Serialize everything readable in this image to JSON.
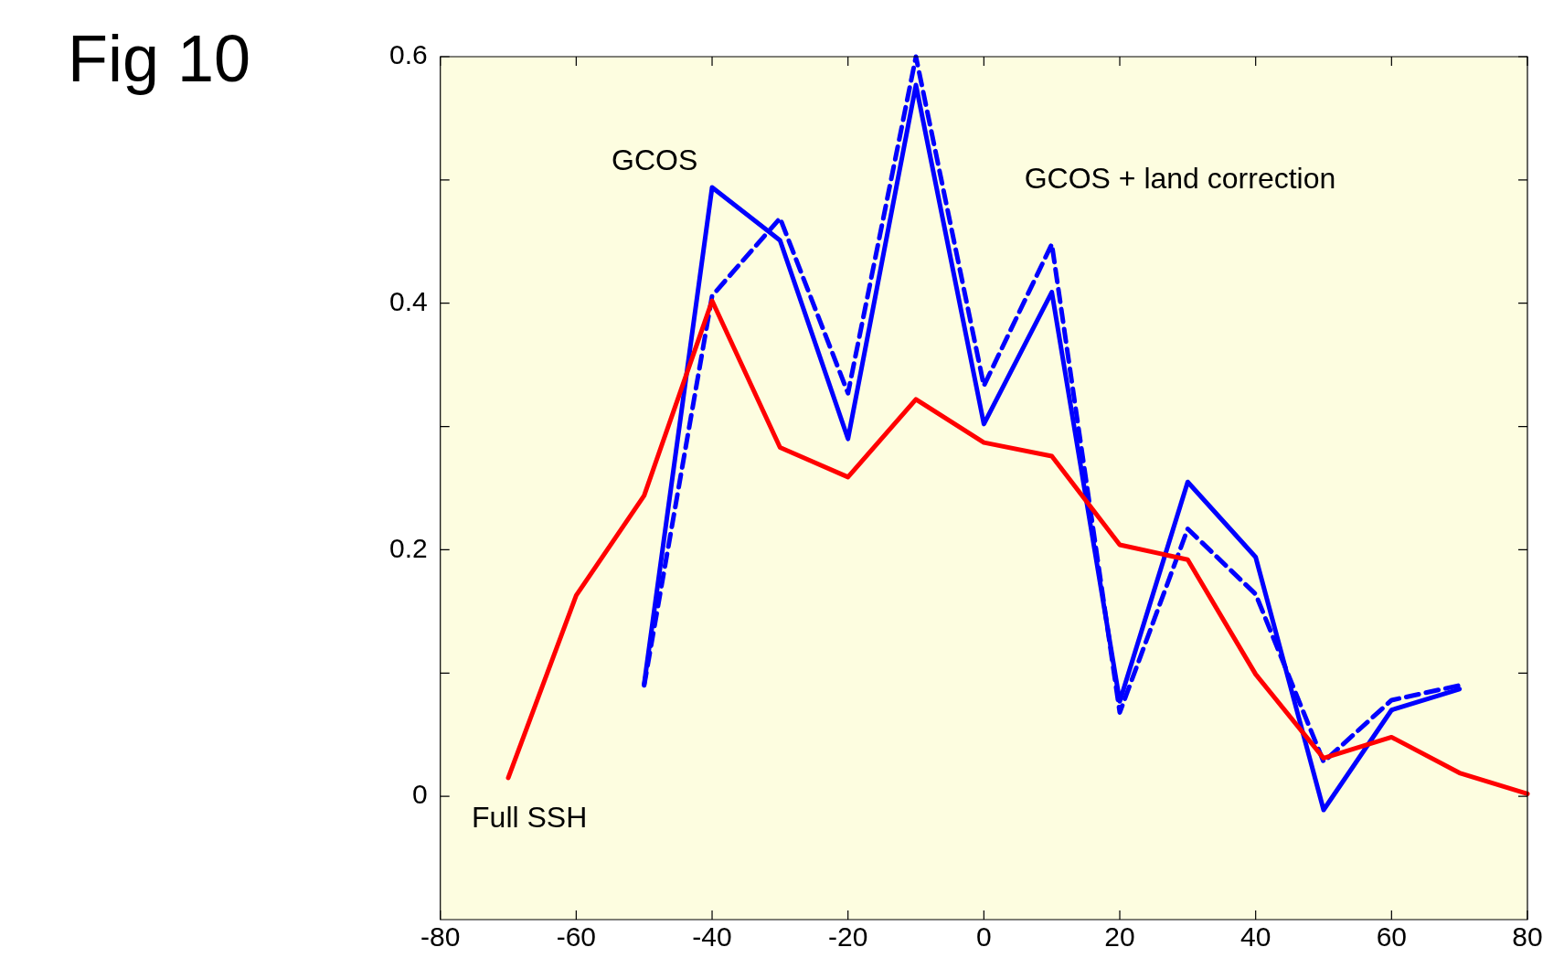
{
  "chart_data": {
    "type": "line",
    "title": "Fig 10",
    "x": [
      -70,
      -60,
      -50,
      -40,
      -30,
      -20,
      -10,
      0,
      10,
      20,
      30,
      40,
      50,
      60,
      70,
      80
    ],
    "series": [
      {
        "name": "Full SSH",
        "color": "#ff0000",
        "values": [
          0.015,
          0.163,
          0.244,
          0.402,
          0.283,
          0.259,
          0.322,
          0.287,
          0.276,
          0.204,
          0.192,
          0.099,
          0.031,
          0.048,
          0.019,
          0.002
        ],
        "line_style": "solid"
      },
      {
        "name": "GCOS",
        "color": "#0000ff",
        "values": [
          null,
          null,
          0.091,
          0.494,
          0.451,
          0.29,
          0.577,
          0.302,
          0.409,
          0.077,
          0.255,
          0.194,
          -0.011,
          0.07,
          0.087,
          null
        ],
        "line_style": "solid"
      },
      {
        "name": "GCOS + land correction",
        "color": "#0000ff",
        "values": [
          null,
          null,
          0.09,
          0.406,
          0.469,
          0.327,
          0.6,
          0.333,
          0.448,
          0.068,
          0.217,
          0.164,
          0.028,
          0.078,
          0.09,
          null
        ],
        "line_style": "dashed"
      }
    ],
    "xlim": [
      -80,
      80
    ],
    "xticks": [
      -80,
      -60,
      -40,
      -20,
      0,
      20,
      40,
      60,
      80
    ],
    "ylim": [
      -0.1,
      0.6
    ],
    "yticks": [
      0,
      {
        "value": 0.1,
        "label": null
      },
      0.2,
      {
        "value": 0.3,
        "label": null
      },
      0.4,
      {
        "value": 0.5,
        "label": null
      },
      0.6
    ],
    "grid": false,
    "legend": false,
    "marker": "none"
  }
}
